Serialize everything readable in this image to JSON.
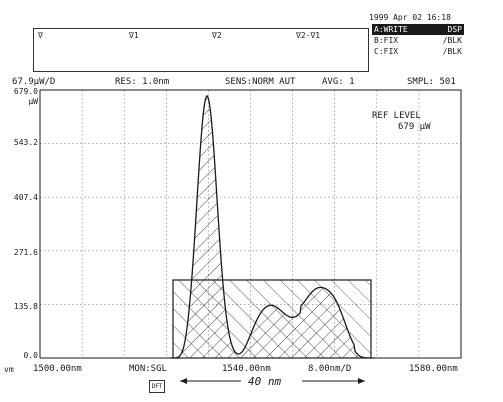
{
  "header": {
    "timestamp": "1999 Apr 02 16:18"
  },
  "marker_box": {
    "labels": [
      "∇",
      "∇1",
      "∇2",
      "∇2-∇1"
    ]
  },
  "trace_panel": {
    "rows": [
      {
        "label": "A:WRITE",
        "value": "DSP",
        "active": true
      },
      {
        "label": "B:FIX",
        "value": "/BLK",
        "active": false
      },
      {
        "label": "C:FIX",
        "value": "/BLK",
        "active": false
      }
    ]
  },
  "status_bar": {
    "scale": "67.9μW/D",
    "resolution": "RES: 1.0nm",
    "sensitivity": "SENS:NORM AUT",
    "averaging": "AVG:    1",
    "sampling": "SMPL: 501"
  },
  "ref_level": {
    "label": "REF LEVEL",
    "value": "679 μW"
  },
  "y_axis": {
    "unit": "μW",
    "ticks": [
      "679.0",
      "543.2",
      "407.4",
      "271.6",
      "135.8",
      "0.0"
    ]
  },
  "x_axis": {
    "left_prefix": "vm",
    "start": "1500.00nm",
    "center": "1540.00nm",
    "span_per_div": "8.00nm/D",
    "end": "1580.00nm"
  },
  "monitor": {
    "label": "MON:SGL",
    "icon_text": "DFT"
  },
  "annotation": {
    "width_label": "40 nm"
  },
  "colors": {
    "ink": "#1a1a1a",
    "grid": "#777777",
    "paper": "#ffffff"
  }
}
